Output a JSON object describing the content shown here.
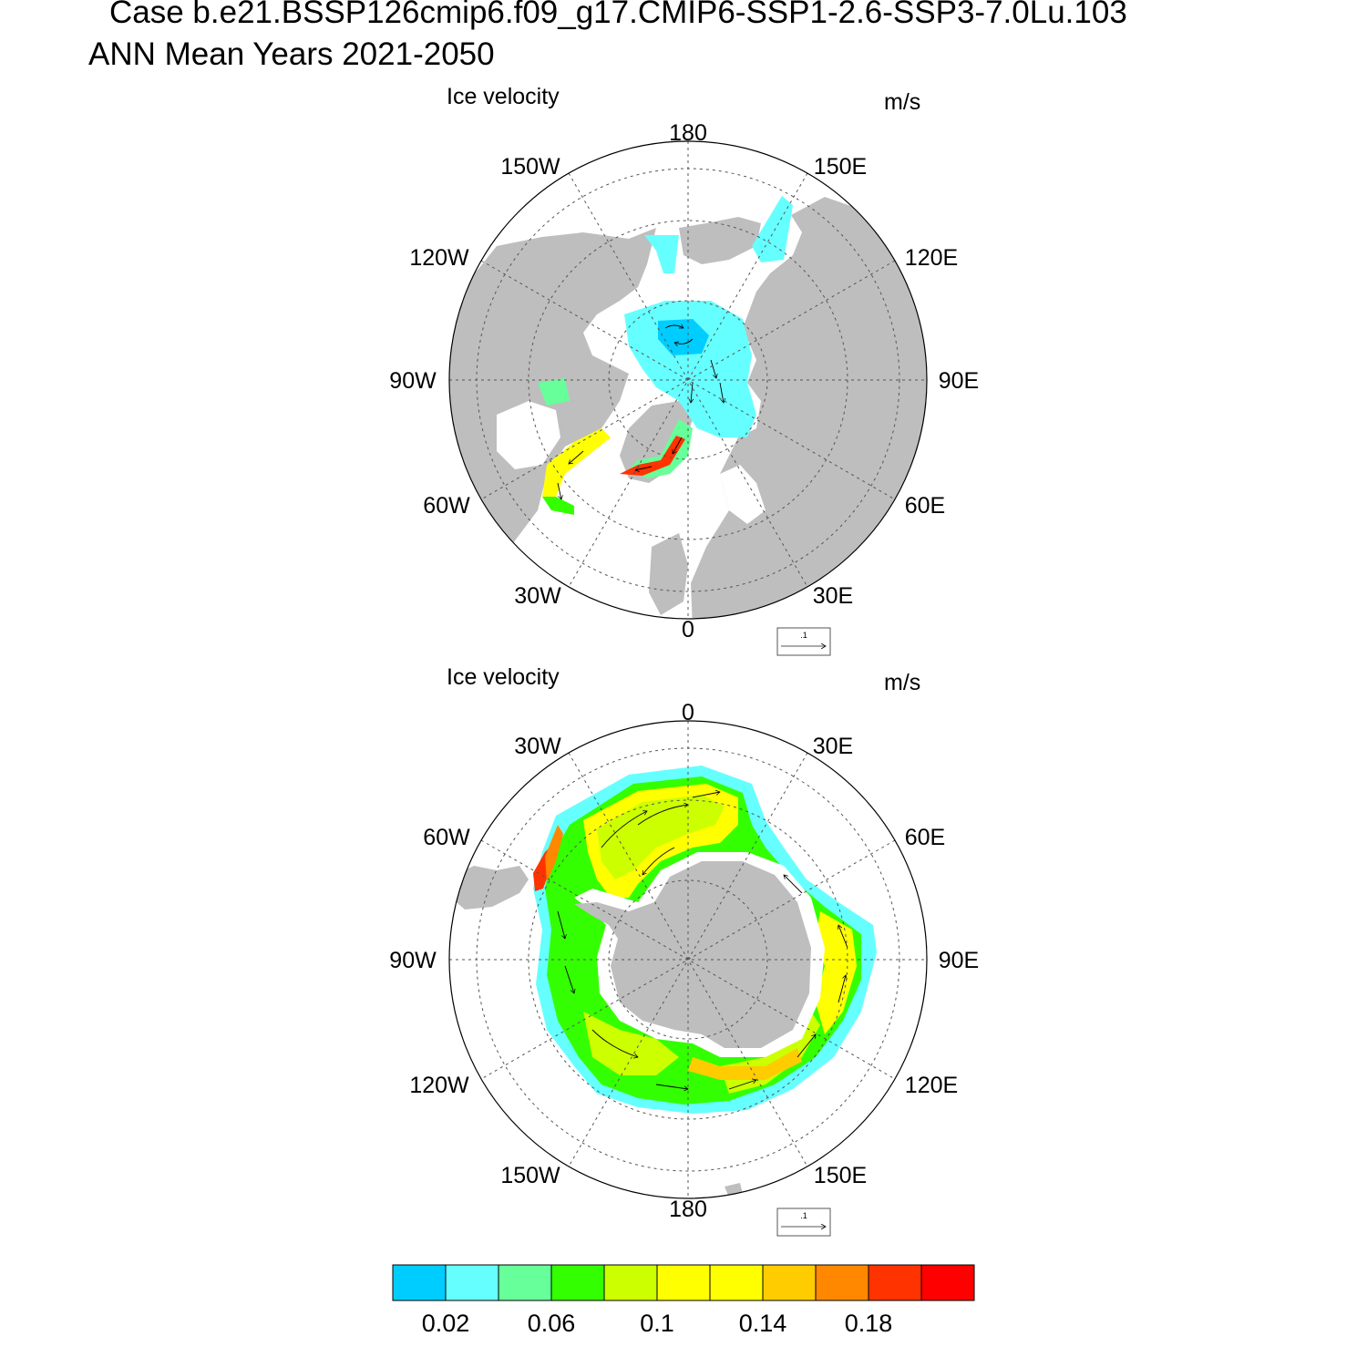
{
  "header": {
    "case_line": "Case b.e21.BSSP126cmip6.f09_g17.CMIP6-SSP1-2.6-SSP3-7.0Lu.103",
    "mean_line": "ANN Mean   Years 2021-2050"
  },
  "panels": [
    {
      "title": "Ice velocity",
      "units": "m/s",
      "hemisphere": "north",
      "lon_labels": [
        "180",
        "150E",
        "120E",
        "90E",
        "60E",
        "30E",
        "0",
        "30W",
        "60W",
        "90W",
        "120W",
        "150W"
      ],
      "reference_vector": ".1"
    },
    {
      "title": "Ice velocity",
      "units": "m/s",
      "hemisphere": "south",
      "lon_labels": [
        "0",
        "30E",
        "60E",
        "90E",
        "120E",
        "150E",
        "180",
        "150W",
        "120W",
        "90W",
        "60W",
        "30W"
      ],
      "reference_vector": ".1"
    }
  ],
  "colorbar": {
    "colors": [
      "#00cdff",
      "#66ffff",
      "#66ff99",
      "#33ff00",
      "#ccff00",
      "#ffff00",
      "#ffff00",
      "#ffcc00",
      "#ff8800",
      "#ff3300",
      "#ff0000"
    ],
    "tick_labels": [
      "0.02",
      "0.06",
      "0.1",
      "0.14",
      "0.18"
    ]
  },
  "colors": {
    "land": "#bebebe",
    "ocean": "#ffffff"
  }
}
